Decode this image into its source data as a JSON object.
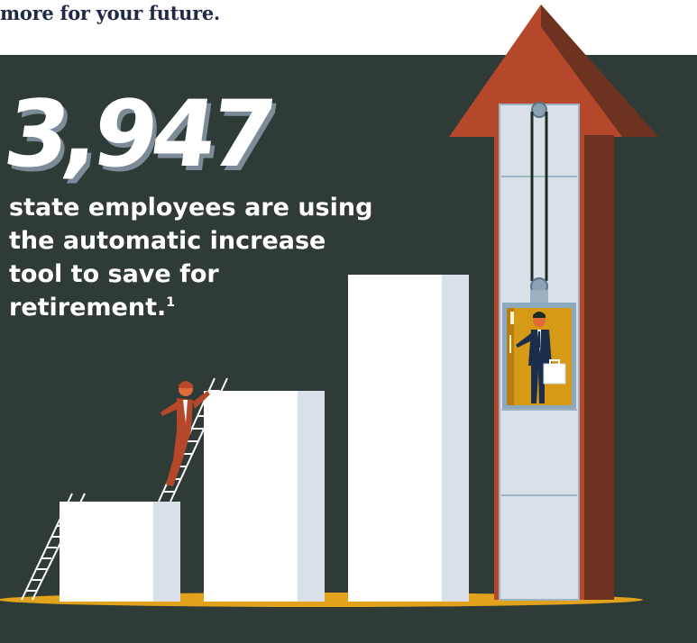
{
  "intro_text": "more for your future.",
  "stat": {
    "number": "3,947",
    "caption": "state employees are using\nthe automatic increase\ntool to save for\nretirement.",
    "footnote_marker": "1"
  },
  "colors": {
    "panel_background": "#2f3b36",
    "intro_text": "#1f2a44",
    "number_shadow": "#7d8a97",
    "arrow": "#b5472a",
    "arrow_shadow": "#6e3320",
    "ground": "#e2a21c",
    "elevator_car": "#d79a16",
    "bars": "#ffffff",
    "bar_shade": "#d9e0e7"
  },
  "illustration": {
    "arrow_icon": "up-arrow-icon",
    "elevator_icon": "elevator-icon",
    "businessman_icon": "businessman-icon",
    "climber_icon": "climbing-man-icon",
    "ladder_icon": "ladder-icon",
    "bar_count": 3
  }
}
